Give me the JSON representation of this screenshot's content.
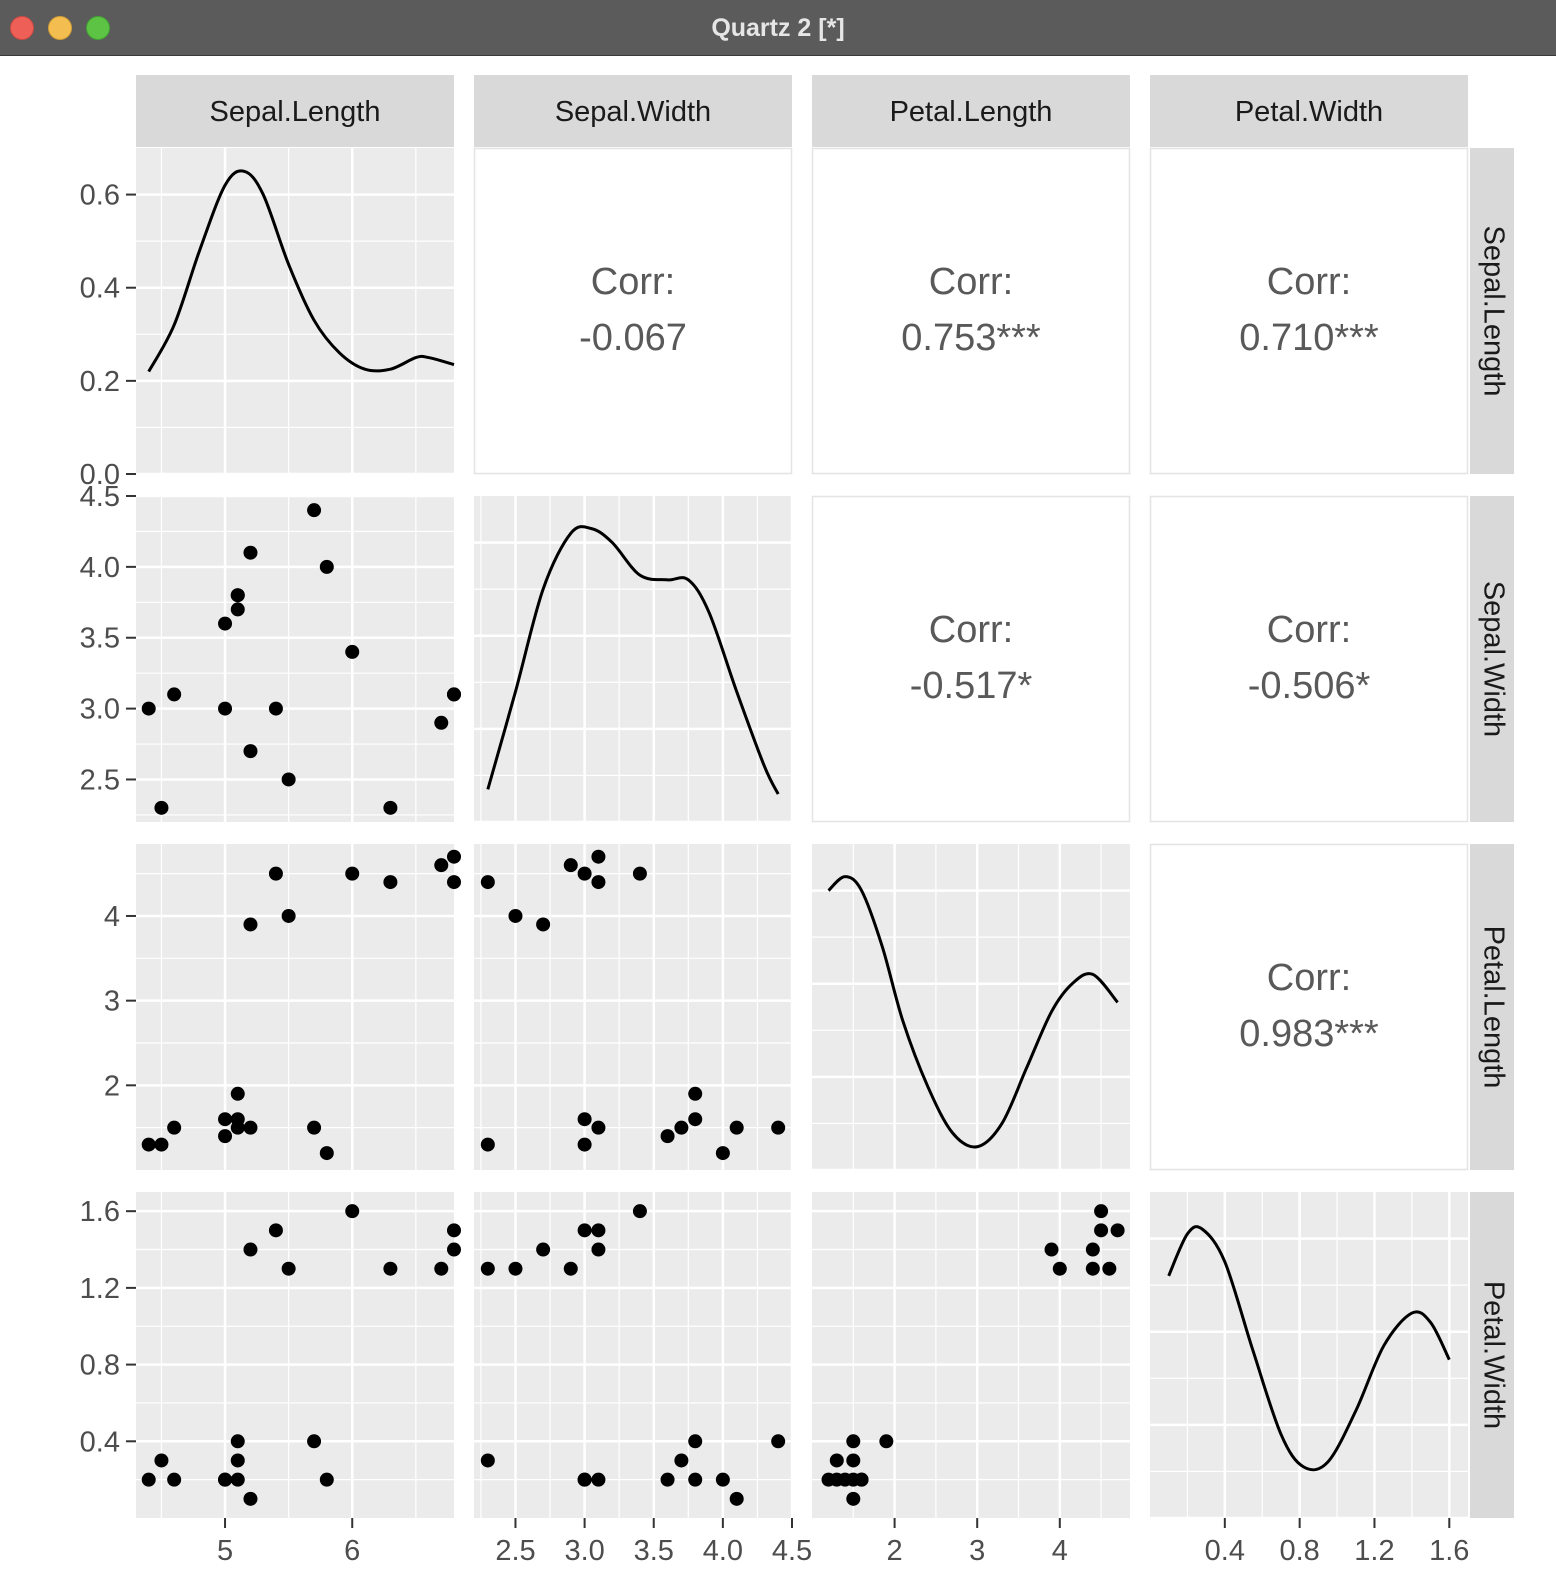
{
  "window": {
    "title": "Quartz 2 [*]"
  },
  "chart_data": {
    "type": "scatter",
    "subtype": "pairs-matrix",
    "variables": [
      "Sepal.Length",
      "Sepal.Width",
      "Petal.Length",
      "Petal.Width"
    ],
    "corr_label": "Corr:",
    "correlations": [
      {
        "row": 0,
        "col": 1,
        "value": "-0.067"
      },
      {
        "row": 0,
        "col": 2,
        "value": "0.753***"
      },
      {
        "row": 0,
        "col": 3,
        "value": "0.710***"
      },
      {
        "row": 1,
        "col": 2,
        "value": "-0.517*"
      },
      {
        "row": 1,
        "col": 3,
        "value": "-0.506*"
      },
      {
        "row": 2,
        "col": 3,
        "value": "0.983***"
      }
    ],
    "axes": {
      "Sepal.Length": {
        "range": [
          4.3,
          6.8
        ],
        "ticks": [
          5,
          6
        ],
        "tick_labels": [
          "5",
          "6"
        ]
      },
      "Sepal.Width": {
        "range": [
          2.2,
          4.5
        ],
        "ticks": [
          2.5,
          3.0,
          3.5,
          4.0,
          4.5
        ],
        "tick_labels": [
          "2.5",
          "3.0",
          "3.5",
          "4.0",
          "4.5"
        ]
      },
      "Petal.Length": {
        "range": [
          1.0,
          4.85
        ],
        "ticks": [
          2,
          3,
          4
        ],
        "tick_labels": [
          "2",
          "3",
          "4"
        ]
      },
      "Petal.Width": {
        "range": [
          0.0,
          1.7
        ],
        "ticks": [
          0.4,
          0.8,
          1.2,
          1.6
        ],
        "tick_labels": [
          "0.4",
          "0.8",
          "1.2",
          "1.6"
        ]
      }
    },
    "density_axis": {
      "range": [
        0.0,
        0.7
      ],
      "ticks": [
        0.0,
        0.2,
        0.4,
        0.6
      ],
      "tick_labels": [
        "0.0",
        "0.2",
        "0.4",
        "0.6"
      ]
    },
    "densities": {
      "Sepal.Length": [
        [
          4.4,
          0.22
        ],
        [
          4.6,
          0.32
        ],
        [
          4.8,
          0.48
        ],
        [
          5.0,
          0.62
        ],
        [
          5.15,
          0.65
        ],
        [
          5.3,
          0.6
        ],
        [
          5.5,
          0.45
        ],
        [
          5.7,
          0.33
        ],
        [
          5.9,
          0.26
        ],
        [
          6.1,
          0.225
        ],
        [
          6.3,
          0.225
        ],
        [
          6.5,
          0.25
        ],
        [
          6.6,
          0.25
        ],
        [
          6.8,
          0.235
        ]
      ],
      "Sepal.Width": [
        [
          2.3,
          0.07
        ],
        [
          2.5,
          0.28
        ],
        [
          2.7,
          0.5
        ],
        [
          2.9,
          0.62
        ],
        [
          3.05,
          0.63
        ],
        [
          3.2,
          0.6
        ],
        [
          3.4,
          0.53
        ],
        [
          3.6,
          0.52
        ],
        [
          3.75,
          0.52
        ],
        [
          3.9,
          0.45
        ],
        [
          4.1,
          0.28
        ],
        [
          4.3,
          0.12
        ],
        [
          4.4,
          0.06
        ]
      ],
      "Petal.Length": [
        [
          1.2,
          0.6
        ],
        [
          1.4,
          0.63
        ],
        [
          1.6,
          0.6
        ],
        [
          1.85,
          0.48
        ],
        [
          2.1,
          0.32
        ],
        [
          2.4,
          0.18
        ],
        [
          2.7,
          0.08
        ],
        [
          3.0,
          0.05
        ],
        [
          3.3,
          0.1
        ],
        [
          3.6,
          0.22
        ],
        [
          3.9,
          0.34
        ],
        [
          4.15,
          0.4
        ],
        [
          4.4,
          0.42
        ],
        [
          4.7,
          0.36
        ]
      ],
      "Petal.Width": [
        [
          0.1,
          0.52
        ],
        [
          0.2,
          0.61
        ],
        [
          0.28,
          0.62
        ],
        [
          0.4,
          0.55
        ],
        [
          0.55,
          0.36
        ],
        [
          0.7,
          0.18
        ],
        [
          0.82,
          0.11
        ],
        [
          0.95,
          0.12
        ],
        [
          1.1,
          0.23
        ],
        [
          1.25,
          0.37
        ],
        [
          1.4,
          0.44
        ],
        [
          1.5,
          0.42
        ],
        [
          1.6,
          0.34
        ]
      ]
    },
    "observations": [
      [
        4.4,
        3.0,
        1.3,
        0.2
      ],
      [
        4.5,
        2.3,
        1.3,
        0.3
      ],
      [
        4.6,
        3.1,
        1.5,
        0.2
      ],
      [
        5.0,
        3.6,
        1.4,
        0.2
      ],
      [
        5.0,
        3.0,
        1.6,
        0.2
      ],
      [
        5.1,
        3.8,
        1.9,
        0.4
      ],
      [
        5.1,
        3.7,
        1.5,
        0.3
      ],
      [
        5.1,
        3.8,
        1.6,
        0.2
      ],
      [
        5.2,
        4.1,
        1.5,
        0.1
      ],
      [
        5.7,
        4.4,
        1.5,
        0.4
      ],
      [
        5.8,
        4.0,
        1.2,
        0.2
      ],
      [
        5.2,
        2.7,
        3.9,
        1.4
      ],
      [
        5.4,
        3.0,
        4.5,
        1.5
      ],
      [
        5.5,
        2.5,
        4.0,
        1.3
      ],
      [
        6.0,
        3.4,
        4.5,
        1.6
      ],
      [
        6.3,
        2.3,
        4.4,
        1.3
      ],
      [
        6.7,
        2.9,
        4.6,
        1.3
      ],
      [
        6.8,
        3.1,
        4.4,
        1.4
      ],
      [
        6.8,
        3.1,
        4.7,
        1.5
      ]
    ]
  }
}
